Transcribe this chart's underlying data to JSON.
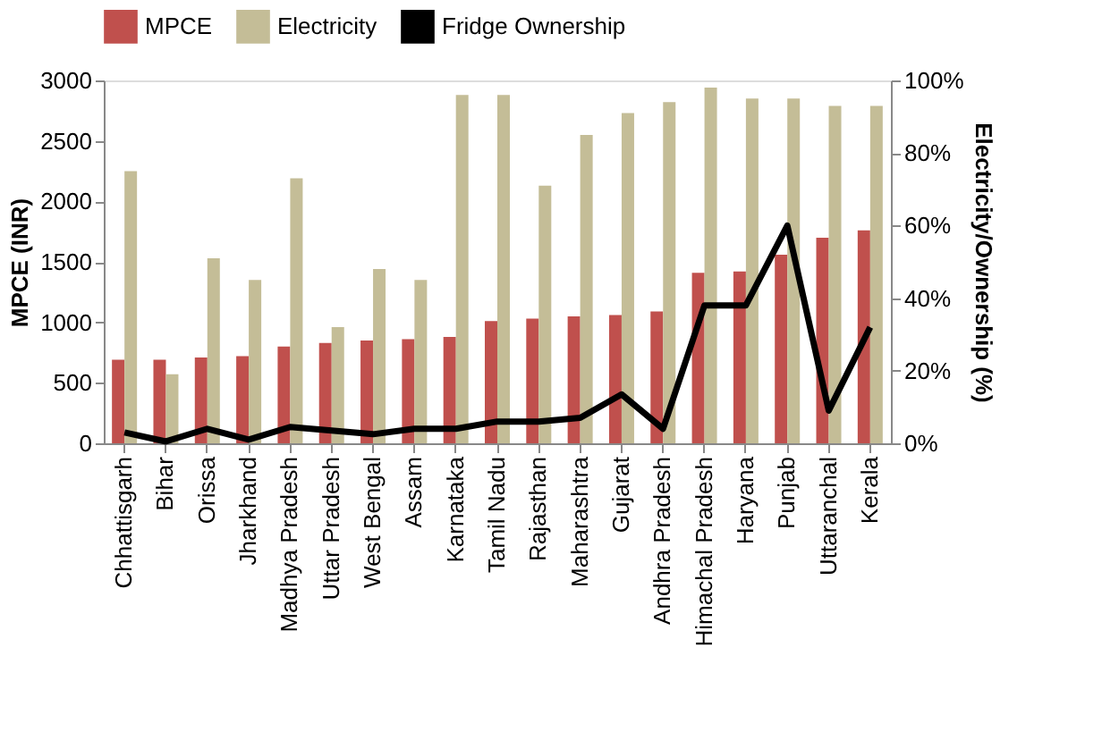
{
  "chart_data": {
    "type": "bar",
    "categories": [
      "Chhattisgarh",
      "Bihar",
      "Orissa",
      "Jharkhand",
      "Madhya Pradesh",
      "Uttar Pradesh",
      "West Bengal",
      "Assam",
      "Karnataka",
      "Tamil Nadu",
      "Rajasthan",
      "Maharashtra",
      "Gujarat",
      "Andhra Pradesh",
      "Himachal Pradesh",
      "Haryana",
      "Punjab",
      "Uttaranchal",
      "Kerala"
    ],
    "series": [
      {
        "name": "MPCE",
        "color": "#c0504d",
        "values": [
          690,
          690,
          710,
          720,
          800,
          830,
          850,
          860,
          880,
          1010,
          1030,
          1050,
          1060,
          1090,
          1410,
          1420,
          1560,
          1700,
          1760
        ]
      },
      {
        "name": "Electricity",
        "axis": "y2",
        "color": "#c4bd97",
        "values": [
          75,
          19,
          51,
          45,
          73,
          32,
          48,
          45,
          96,
          96,
          71,
          85,
          91,
          94,
          98,
          95,
          95,
          93,
          93
        ]
      },
      {
        "name": "Fridge Ownership",
        "type": "line",
        "axis": "y2",
        "color": "#000000",
        "values": [
          3,
          0.5,
          4,
          1,
          4.5,
          3.5,
          2.5,
          4,
          4,
          6,
          6,
          7,
          13.5,
          4,
          38,
          38,
          60,
          9,
          32
        ]
      }
    ],
    "ylabel": "MPCE (INR)",
    "y2label": "Electricity/Ownership (%)",
    "ylim": [
      0,
      3000
    ],
    "yticks": [
      0,
      500,
      1000,
      1500,
      2000,
      2500,
      3000
    ],
    "y2lim": [
      0,
      100
    ],
    "y2ticks": [
      {
        "value": 0,
        "label": "0%"
      },
      {
        "value": 20,
        "label": "20%"
      },
      {
        "value": 40,
        "label": "40%"
      },
      {
        "value": 60,
        "label": "60%"
      },
      {
        "value": 80,
        "label": "80%"
      },
      {
        "value": 100,
        "label": "100%"
      }
    ],
    "legend": "top",
    "grid": false,
    "marker": "none",
    "line_style": "solid"
  }
}
